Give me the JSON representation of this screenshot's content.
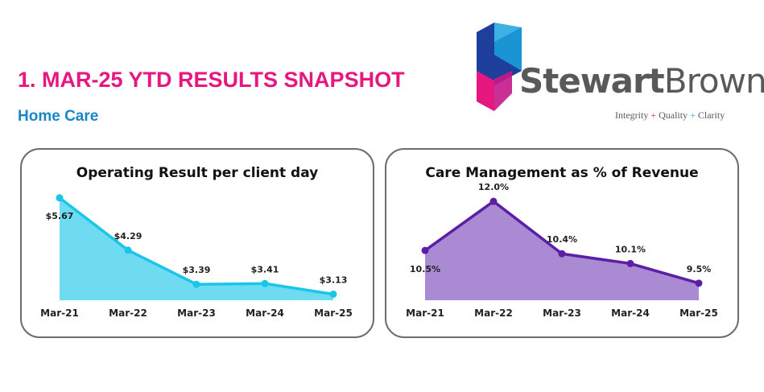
{
  "header": {
    "title": "1.  MAR-25 YTD RESULTS SNAPSHOT",
    "subtitle": "Home Care"
  },
  "logo": {
    "name_bold": "Stewart",
    "name_light": "Brown",
    "tagline": [
      "Integrity",
      "+",
      "Quality",
      "+",
      "Clarity"
    ]
  },
  "chart_data": [
    {
      "type": "area",
      "title": "Operating Result per client day",
      "categories": [
        "Mar-21",
        "Mar-22",
        "Mar-23",
        "Mar-24",
        "Mar-25"
      ],
      "values": [
        5.67,
        4.29,
        3.39,
        3.41,
        3.13
      ],
      "labels": [
        "$5.67",
        "$4.29",
        "$3.39",
        "$3.41",
        "$3.13"
      ],
      "ylim": [
        2.97,
        5.75
      ],
      "color": "#1ac6e8",
      "fill": "#6fdbf0",
      "grid": false
    },
    {
      "type": "area",
      "title": "Care Management as % of Revenue",
      "categories": [
        "Mar-21",
        "Mar-22",
        "Mar-23",
        "Mar-24",
        "Mar-25"
      ],
      "values": [
        10.5,
        12.0,
        10.4,
        10.1,
        9.5
      ],
      "labels": [
        "10.5%",
        "12.0%",
        "10.4%",
        "10.1%",
        "9.5%"
      ],
      "ylim": [
        8.98,
        12.2
      ],
      "color": "#5b1fa6",
      "fill": "#a98ad3",
      "grid": false
    }
  ]
}
